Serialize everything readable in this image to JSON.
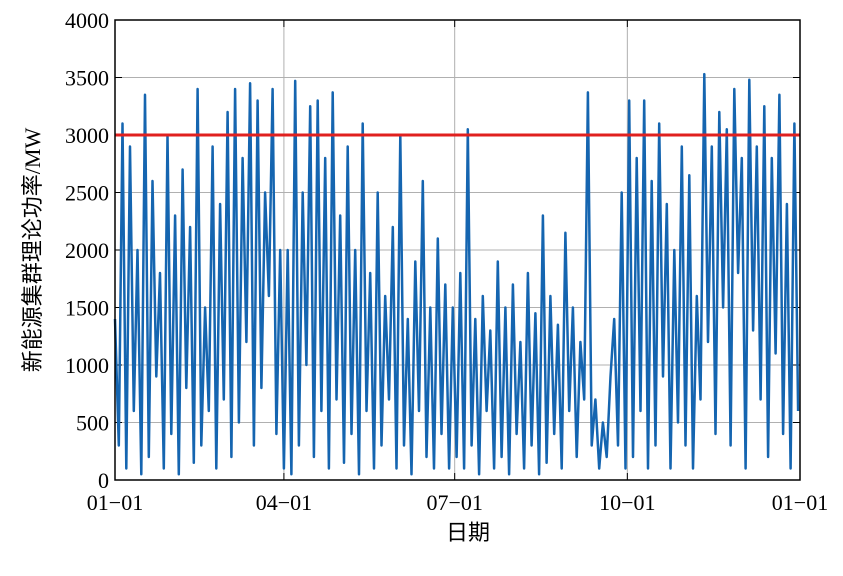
{
  "chart_data": {
    "type": "line",
    "x_label": "日期",
    "y_label": "新能源集群理论功率/MW",
    "x": [
      0,
      2,
      4,
      6,
      8,
      10,
      12,
      14,
      16,
      18,
      20,
      22,
      24,
      26,
      28,
      30,
      32,
      34,
      36,
      38,
      40,
      42,
      44,
      46,
      48,
      50,
      52,
      54,
      56,
      58,
      60,
      62,
      64,
      66,
      68,
      70,
      72,
      74,
      76,
      78,
      80,
      82,
      84,
      86,
      88,
      90,
      92,
      94,
      96,
      98,
      100,
      102,
      104,
      106,
      108,
      110,
      112,
      114,
      116,
      118,
      120,
      122,
      124,
      126,
      128,
      130,
      132,
      134,
      136,
      138,
      140,
      142,
      144,
      146,
      148,
      150,
      152,
      154,
      156,
      158,
      160,
      162,
      164,
      166,
      168,
      170,
      172,
      174,
      176,
      178,
      180,
      182,
      184,
      186,
      188,
      190,
      192,
      194,
      196,
      198,
      200,
      202,
      204,
      206,
      208,
      210,
      212,
      214,
      216,
      218,
      220,
      222,
      224,
      226,
      228,
      230,
      232,
      234,
      236,
      238,
      240,
      242,
      244,
      246,
      248,
      250,
      252,
      254,
      256,
      258,
      260,
      262,
      264,
      266,
      268,
      270,
      272,
      274,
      276,
      278,
      280,
      282,
      284,
      286,
      288,
      290,
      292,
      294,
      296,
      298,
      300,
      302,
      304,
      306,
      308,
      310,
      312,
      314,
      316,
      318,
      320,
      322,
      324,
      326,
      328,
      330,
      332,
      334,
      336,
      338,
      340,
      342,
      344,
      346,
      348,
      350,
      352,
      354,
      356,
      358,
      360,
      362,
      364
    ],
    "series": [
      {
        "color": "#1565b0",
        "values": [
          1400,
          300,
          3100,
          100,
          2900,
          600,
          2000,
          50,
          3350,
          200,
          2600,
          900,
          1800,
          100,
          3000,
          400,
          2300,
          50,
          2700,
          800,
          2200,
          150,
          3400,
          300,
          1500,
          600,
          2900,
          100,
          2400,
          700,
          3200,
          200,
          3400,
          500,
          2800,
          1200,
          3450,
          300,
          3300,
          800,
          2500,
          1600,
          3400,
          400,
          2000,
          100,
          2000,
          50,
          3470,
          300,
          2500,
          1000,
          3250,
          200,
          3300,
          600,
          2800,
          100,
          3370,
          700,
          2300,
          150,
          2900,
          400,
          2000,
          50,
          3100,
          600,
          1800,
          100,
          2500,
          300,
          1600,
          700,
          2200,
          100,
          3000,
          300,
          1400,
          50,
          1900,
          600,
          2600,
          200,
          1500,
          100,
          2100,
          400,
          1700,
          100,
          1500,
          200,
          1800,
          100,
          3050,
          300,
          1400,
          50,
          1600,
          600,
          1300,
          100,
          1900,
          200,
          1500,
          50,
          1700,
          400,
          1200,
          100,
          1800,
          300,
          1450,
          50,
          2300,
          150,
          1600,
          400,
          1350,
          100,
          2150,
          600,
          1500,
          200,
          1200,
          700,
          3370,
          300,
          700,
          100,
          500,
          200,
          900,
          1400,
          300,
          2500,
          100,
          3300,
          200,
          2800,
          600,
          3300,
          100,
          2600,
          300,
          3100,
          900,
          2400,
          100,
          2000,
          500,
          2900,
          300,
          2650,
          100,
          1600,
          700,
          3530,
          1200,
          2900,
          400,
          3200,
          1500,
          3050,
          300,
          3400,
          1800,
          2800,
          100,
          3480,
          1300,
          2900,
          700,
          3250,
          200,
          2800,
          1100,
          3350,
          400,
          2400,
          100,
          3100,
          600
        ]
      }
    ],
    "reference_line": {
      "value": 3000,
      "color": "#e0201f"
    },
    "xlim": [
      0,
      365
    ],
    "xticks": [
      {
        "value": 0,
        "label": "01−01"
      },
      {
        "value": 90,
        "label": "04−01"
      },
      {
        "value": 181,
        "label": "07−01"
      },
      {
        "value": 273,
        "label": "10−01"
      },
      {
        "value": 365,
        "label": "01−01"
      }
    ],
    "ylim": [
      0,
      4000
    ],
    "yticks": [
      0,
      500,
      1000,
      1500,
      2000,
      2500,
      3000,
      3500,
      4000
    ],
    "grid": true
  }
}
